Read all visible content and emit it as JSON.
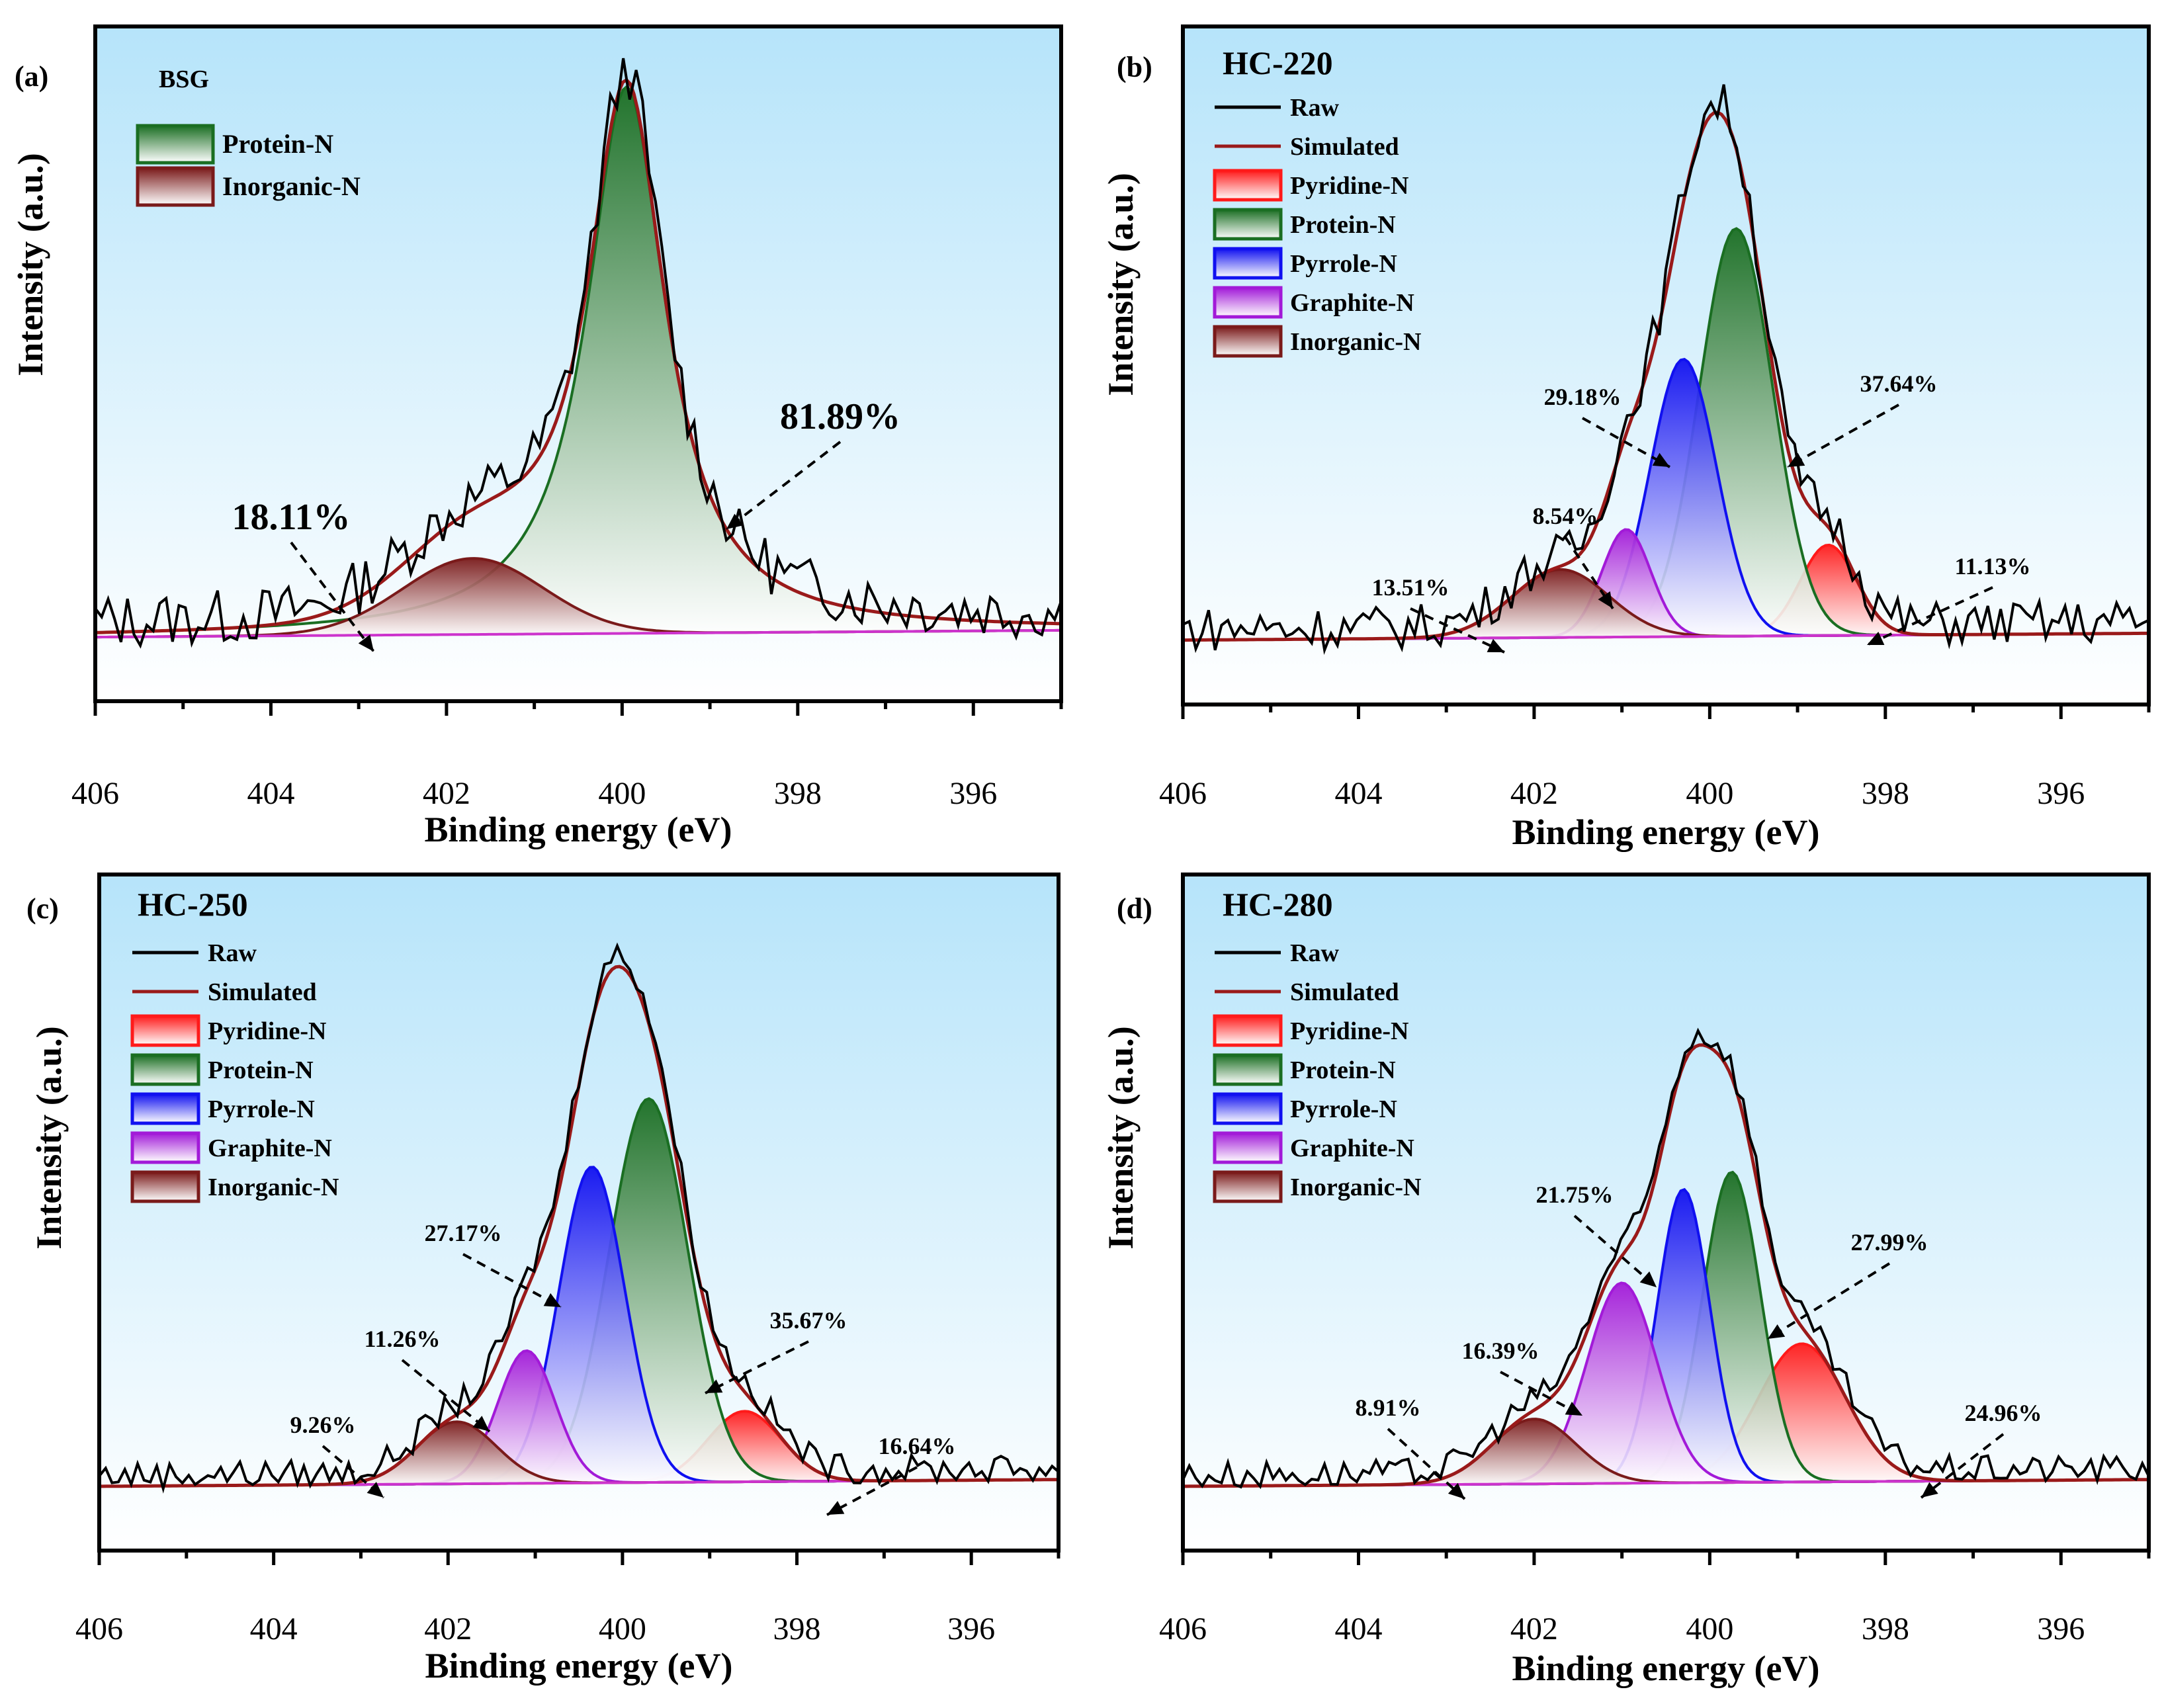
{
  "figure": {
    "colors": {
      "Raw": "#000000",
      "Simulated": "#9a1a1a",
      "Pyridine-N": "#ff1a1a",
      "Protein-N": "#1a6e22",
      "Pyrrole-N": "#1010f0",
      "Graphite-N": "#a21ad8",
      "Inorganic-N": "#7a1a1a",
      "baseline": "#cc33cc",
      "plot_bg_top": "#b6e4fa",
      "plot_bg_bottom": "#ffffff"
    }
  },
  "chart_data": [
    {
      "type": "area",
      "panel": "(a)",
      "title": "BSG",
      "xlabel": "Binding energy (eV)",
      "ylabel": "Intensity (a.u.)",
      "xlim": [
        406,
        395
      ],
      "xticks": [
        "406",
        "404",
        "402",
        "400",
        "398",
        "396"
      ],
      "grid": false,
      "legend": [
        "Protein-N",
        "Inorganic-N"
      ],
      "show_raw_sim_legend": false,
      "series": [
        {
          "name": "Protein-N",
          "center": 399.95,
          "height": 0.97,
          "width": 0.55,
          "shape": "lorentzian",
          "label": "81.89%"
        },
        {
          "name": "Inorganic-N",
          "center": 401.7,
          "height": 0.135,
          "width": 0.8,
          "shape": "gaussian",
          "label": "18.11%"
        }
      ],
      "raw_noise": 0.05
    },
    {
      "type": "area",
      "panel": "(b)",
      "title": "HC-220",
      "xlabel": "Binding energy (eV)",
      "ylabel": "Intensity (a.u.)",
      "xlim": [
        406,
        395
      ],
      "xticks": [
        "406",
        "404",
        "402",
        "400",
        "398",
        "396"
      ],
      "grid": false,
      "legend": [
        "Raw",
        "Simulated",
        "Pyridine-N",
        "Protein-N",
        "Pyrrole-N",
        "Graphite-N",
        "Inorganic-N"
      ],
      "show_raw_sim_legend": true,
      "series": [
        {
          "name": "Pyridine-N",
          "center": 398.65,
          "height": 0.16,
          "width": 0.32,
          "shape": "gaussian",
          "label": "11.13%"
        },
        {
          "name": "Protein-N",
          "center": 399.7,
          "height": 0.72,
          "width": 0.42,
          "shape": "gaussian",
          "label": "37.64%"
        },
        {
          "name": "Pyrrole-N",
          "center": 400.3,
          "height": 0.49,
          "width": 0.38,
          "shape": "gaussian",
          "label": "29.18%"
        },
        {
          "name": "Graphite-N",
          "center": 400.95,
          "height": 0.19,
          "width": 0.28,
          "shape": "gaussian",
          "label": "8.54%"
        },
        {
          "name": "Inorganic-N",
          "center": 401.7,
          "height": 0.12,
          "width": 0.55,
          "shape": "gaussian",
          "label": "13.51%"
        }
      ],
      "raw_noise": 0.04
    },
    {
      "type": "area",
      "panel": "(c)",
      "title": "HC-250",
      "xlabel": "Binding energy (eV)",
      "ylabel": "Intensity (a.u.)",
      "xlim": [
        406,
        395
      ],
      "xticks": [
        "406",
        "404",
        "402",
        "400",
        "398",
        "396"
      ],
      "grid": false,
      "legend": [
        "Raw",
        "Simulated",
        "Pyridine-N",
        "Protein-N",
        "Pyrrole-N",
        "Graphite-N",
        "Inorganic-N"
      ],
      "show_raw_sim_legend": true,
      "series": [
        {
          "name": "Pyridine-N",
          "center": 398.6,
          "height": 0.125,
          "width": 0.42,
          "shape": "gaussian",
          "label": "16.64%"
        },
        {
          "name": "Protein-N",
          "center": 399.7,
          "height": 0.68,
          "width": 0.45,
          "shape": "gaussian",
          "label": "35.67%"
        },
        {
          "name": "Pyrrole-N",
          "center": 400.35,
          "height": 0.56,
          "width": 0.38,
          "shape": "gaussian",
          "label": "27.17%"
        },
        {
          "name": "Graphite-N",
          "center": 401.1,
          "height": 0.235,
          "width": 0.33,
          "shape": "gaussian",
          "label": "11.26%"
        },
        {
          "name": "Inorganic-N",
          "center": 401.9,
          "height": 0.11,
          "width": 0.45,
          "shape": "gaussian",
          "label": "9.26%"
        }
      ],
      "raw_noise": 0.025
    },
    {
      "type": "area",
      "panel": "(d)",
      "title": "HC-280",
      "xlabel": "Binding energy (eV)",
      "ylabel": "Intensity (a.u.)",
      "xlim": [
        406,
        395
      ],
      "xticks": [
        "406",
        "404",
        "402",
        "400",
        "398",
        "396"
      ],
      "grid": false,
      "legend": [
        "Raw",
        "Simulated",
        "Pyridine-N",
        "Protein-N",
        "Pyrrole-N",
        "Graphite-N",
        "Inorganic-N"
      ],
      "show_raw_sim_legend": true,
      "series": [
        {
          "name": "Pyridine-N",
          "center": 398.95,
          "height": 0.245,
          "width": 0.5,
          "shape": "gaussian",
          "label": "24.96%"
        },
        {
          "name": "Protein-N",
          "center": 399.75,
          "height": 0.55,
          "width": 0.33,
          "shape": "gaussian",
          "label": "27.99%"
        },
        {
          "name": "Pyrrole-N",
          "center": 400.3,
          "height": 0.52,
          "width": 0.3,
          "shape": "gaussian",
          "label": "21.75%"
        },
        {
          "name": "Graphite-N",
          "center": 401.0,
          "height": 0.355,
          "width": 0.4,
          "shape": "gaussian",
          "label": "16.39%"
        },
        {
          "name": "Inorganic-N",
          "center": 402.0,
          "height": 0.115,
          "width": 0.48,
          "shape": "gaussian",
          "label": "8.91%"
        }
      ],
      "raw_noise": 0.025
    }
  ]
}
